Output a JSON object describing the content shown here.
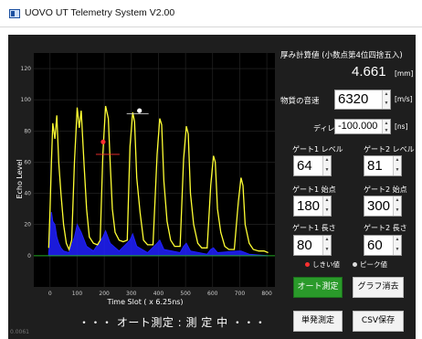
{
  "window": {
    "title": "UOVO UT Telemetry System V2.00"
  },
  "thickness": {
    "title": "厚み計算値 (小数点第4位四捨五入)",
    "value": "4.661",
    "unit": "[mm]"
  },
  "sound_speed": {
    "label": "物質の音速",
    "value": "6320",
    "unit": "[m/s]"
  },
  "delay": {
    "label": "ディレイ",
    "value": "-100.000",
    "unit": "[ns]"
  },
  "gate1": {
    "level_label": "ゲート1 レベル",
    "level": "64",
    "start_label": "ゲート1 始点",
    "start": "180",
    "length_label": "ゲート1 長さ",
    "length": "80"
  },
  "gate2": {
    "level_label": "ゲート2 レベル",
    "level": "81",
    "start_label": "ゲート2 始点",
    "start": "300",
    "length_label": "ゲート2 長さ",
    "length": "60"
  },
  "legend": {
    "threshold_label": "しきい値",
    "threshold_color": "#ff3030",
    "peak_label": "ピーク値",
    "peak_color": "#ffffff"
  },
  "buttons": {
    "auto_measure": "オート測定",
    "clear_graph": "グラフ消去",
    "single_measure": "単発測定",
    "save_csv": "CSV保存"
  },
  "status": "・・・ オート測定 : 測 定 中 ・・・",
  "corner_value": "0.0061",
  "colors": {
    "panel_bg": "#1e1e1e",
    "plot_bg": "#000000",
    "series_yellow": "#ffff33",
    "series_blue": "#2020ff",
    "active_button": "#2a9a2a"
  },
  "chart_data": {
    "type": "line",
    "xlabel": "Time Slot ( x 6.25ns)",
    "ylabel": "Echo Level",
    "xlim": [
      -60,
      830
    ],
    "ylim": [
      -20,
      130
    ],
    "x_ticks": [
      0,
      100,
      200,
      300,
      400,
      500,
      600,
      700,
      800
    ],
    "y_ticks": [
      0,
      20,
      40,
      60,
      80,
      100,
      120
    ],
    "grid": true,
    "series": [
      {
        "color": "#ffff33",
        "points": [
          [
            -5,
            5
          ],
          [
            0,
            30
          ],
          [
            5,
            60
          ],
          [
            10,
            85
          ],
          [
            18,
            75
          ],
          [
            25,
            90
          ],
          [
            32,
            60
          ],
          [
            40,
            40
          ],
          [
            50,
            20
          ],
          [
            60,
            8
          ],
          [
            70,
            4
          ],
          [
            80,
            10
          ],
          [
            90,
            60
          ],
          [
            100,
            95
          ],
          [
            108,
            82
          ],
          [
            115,
            93
          ],
          [
            125,
            60
          ],
          [
            135,
            30
          ],
          [
            145,
            12
          ],
          [
            160,
            8
          ],
          [
            175,
            7
          ],
          [
            185,
            10
          ],
          [
            195,
            65
          ],
          [
            205,
            96
          ],
          [
            215,
            88
          ],
          [
            222,
            60
          ],
          [
            230,
            30
          ],
          [
            240,
            15
          ],
          [
            255,
            10
          ],
          [
            270,
            9
          ],
          [
            285,
            10
          ],
          [
            295,
            70
          ],
          [
            305,
            92
          ],
          [
            312,
            86
          ],
          [
            320,
            50
          ],
          [
            332,
            28
          ],
          [
            345,
            10
          ],
          [
            360,
            7
          ],
          [
            380,
            7
          ],
          [
            395,
            65
          ],
          [
            405,
            88
          ],
          [
            412,
            84
          ],
          [
            420,
            48
          ],
          [
            432,
            22
          ],
          [
            445,
            10
          ],
          [
            460,
            6
          ],
          [
            480,
            6
          ],
          [
            493,
            62
          ],
          [
            503,
            83
          ],
          [
            510,
            78
          ],
          [
            518,
            40
          ],
          [
            530,
            20
          ],
          [
            545,
            8
          ],
          [
            560,
            5
          ],
          [
            580,
            5
          ],
          [
            593,
            45
          ],
          [
            603,
            64
          ],
          [
            610,
            60
          ],
          [
            618,
            30
          ],
          [
            630,
            15
          ],
          [
            645,
            6
          ],
          [
            660,
            4
          ],
          [
            680,
            4
          ],
          [
            695,
            35
          ],
          [
            705,
            50
          ],
          [
            712,
            45
          ],
          [
            720,
            20
          ],
          [
            735,
            8
          ],
          [
            750,
            4
          ],
          [
            770,
            3
          ],
          [
            790,
            3
          ],
          [
            805,
            2
          ]
        ]
      },
      {
        "color": "#2020ff",
        "points": [
          [
            -5,
            2
          ],
          [
            0,
            10
          ],
          [
            5,
            28
          ],
          [
            10,
            22
          ],
          [
            18,
            20
          ],
          [
            25,
            12
          ],
          [
            32,
            8
          ],
          [
            40,
            5
          ],
          [
            50,
            3
          ],
          [
            70,
            2
          ],
          [
            90,
            12
          ],
          [
            100,
            20
          ],
          [
            115,
            15
          ],
          [
            135,
            6
          ],
          [
            160,
            3
          ],
          [
            195,
            12
          ],
          [
            205,
            16
          ],
          [
            222,
            8
          ],
          [
            255,
            3
          ],
          [
            295,
            10
          ],
          [
            305,
            14
          ],
          [
            320,
            6
          ],
          [
            360,
            2
          ],
          [
            395,
            8
          ],
          [
            405,
            10
          ],
          [
            420,
            4
          ],
          [
            480,
            2
          ],
          [
            493,
            6
          ],
          [
            503,
            8
          ],
          [
            518,
            3
          ],
          [
            580,
            1
          ],
          [
            593,
            4
          ],
          [
            603,
            5
          ],
          [
            618,
            2
          ],
          [
            695,
            3
          ],
          [
            705,
            3
          ],
          [
            735,
            1
          ],
          [
            805,
            0
          ]
        ]
      }
    ],
    "markers": [
      {
        "x": 196,
        "y": 73,
        "color": "#ff3030"
      },
      {
        "x": 330,
        "y": 93,
        "color": "#ffffff"
      }
    ]
  }
}
